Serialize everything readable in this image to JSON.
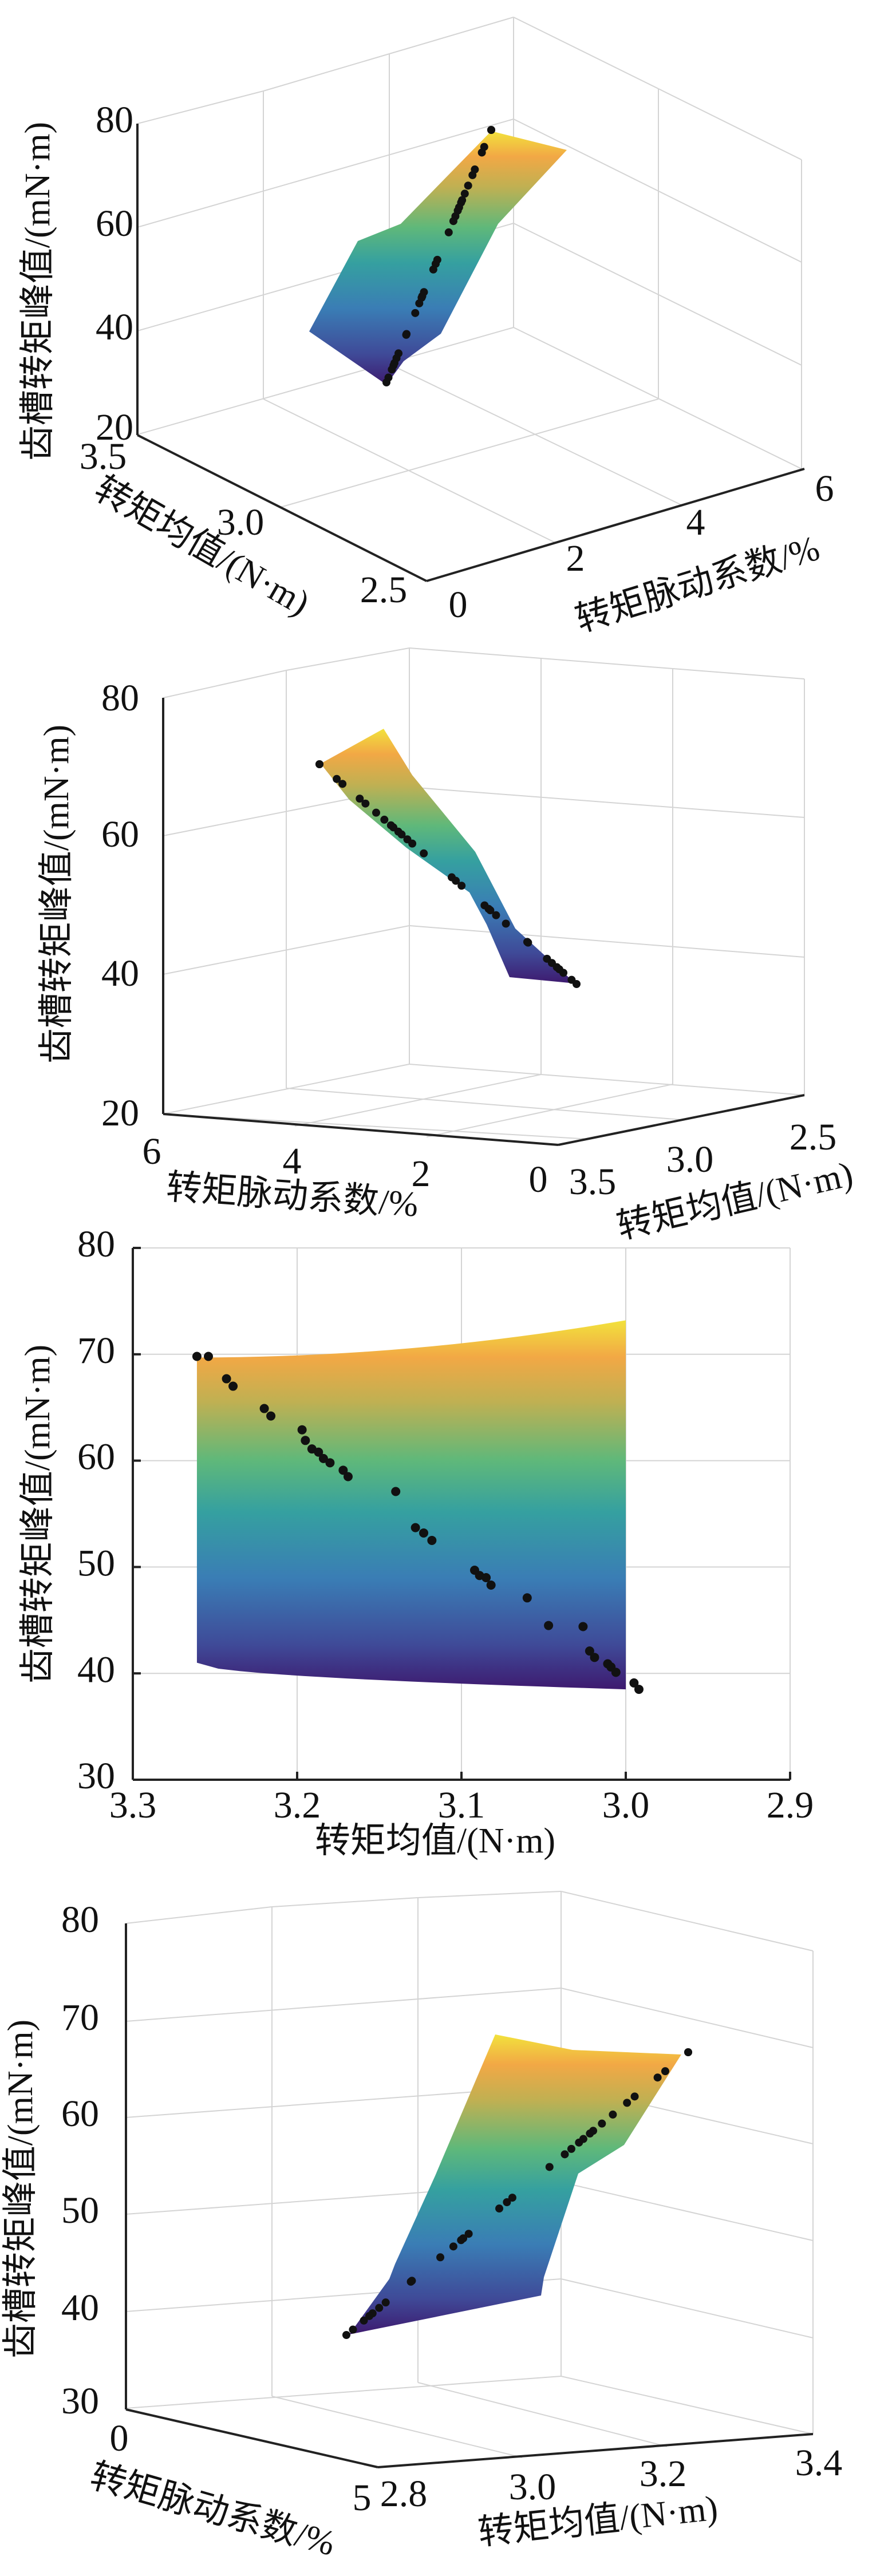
{
  "chart_data": [
    {
      "type": "surface-scatter-3d",
      "view": "3d-front",
      "xlabel": "转矩均值/(N·m)",
      "ylabel": "转矩脉动系数/%",
      "zlabel": "齿槽转矩峰值/(mN·m)",
      "x_ticks": [
        "3.5",
        "3.0",
        "2.5"
      ],
      "y_ticks": [
        "0",
        "2",
        "4",
        "6"
      ],
      "z_ticks": [
        "80",
        "60",
        "40",
        "20"
      ],
      "xlim": [
        2.5,
        3.5
      ],
      "ylim": [
        0,
        6
      ],
      "zlim": [
        20,
        80
      ],
      "colormap": [
        "#3e1a6f",
        "#3a5ca8",
        "#2f8fa6",
        "#3fb38a",
        "#92c060",
        "#f0a742",
        "#f2e23c"
      ]
    },
    {
      "type": "surface-scatter-3d",
      "view": "3d-side",
      "xlabel": "转矩脉动系数/%",
      "ylabel": "转矩均值/(N·m)",
      "zlabel": "齿槽转矩峰值/(mN·m)",
      "x_ticks": [
        "6",
        "4",
        "2",
        "0"
      ],
      "y_ticks": [
        "3.5",
        "3.0",
        "2.5"
      ],
      "z_ticks": [
        "80",
        "60",
        "40",
        "20"
      ],
      "xlim": [
        0,
        6
      ],
      "ylim": [
        2.5,
        3.5
      ],
      "zlim": [
        20,
        80
      ]
    },
    {
      "type": "surface-scatter-2d",
      "view": "x-z projection",
      "xlabel": "转矩均值/(N·m)",
      "ylabel": "齿槽转矩峰值/(mN·m)",
      "x_ticks": [
        "3.3",
        "3.2",
        "3.1",
        "3.0",
        "2.9"
      ],
      "y_ticks": [
        "80",
        "70",
        "60",
        "50",
        "40",
        "30"
      ],
      "xlim": [
        3.3,
        2.9
      ],
      "ylim": [
        30,
        80
      ],
      "grid": true,
      "surface_edges": {
        "top": [
          [
            3.261,
            69.7
          ],
          [
            3.0,
            73.2
          ]
        ],
        "bottom": [
          [
            3.261,
            41.0
          ],
          [
            3.0,
            38.5
          ]
        ]
      },
      "points": [
        [
          3.261,
          69.8
        ],
        [
          3.254,
          69.8
        ],
        [
          3.243,
          67.7
        ],
        [
          3.239,
          67.0
        ],
        [
          3.22,
          64.9
        ],
        [
          3.216,
          64.2
        ],
        [
          3.197,
          62.9
        ],
        [
          3.195,
          61.9
        ],
        [
          3.191,
          61.1
        ],
        [
          3.187,
          60.8
        ],
        [
          3.184,
          60.2
        ],
        [
          3.18,
          59.8
        ],
        [
          3.172,
          59.1
        ],
        [
          3.169,
          58.5
        ],
        [
          3.14,
          57.1
        ],
        [
          3.128,
          53.7
        ],
        [
          3.123,
          53.2
        ],
        [
          3.118,
          52.5
        ],
        [
          3.092,
          49.7
        ],
        [
          3.089,
          49.2
        ],
        [
          3.085,
          49.0
        ],
        [
          3.082,
          48.3
        ],
        [
          3.06,
          47.1
        ],
        [
          3.047,
          44.5
        ],
        [
          3.026,
          44.4
        ],
        [
          3.022,
          42.1
        ],
        [
          3.019,
          41.5
        ],
        [
          3.011,
          40.9
        ],
        [
          3.009,
          40.6
        ],
        [
          3.006,
          40.1
        ],
        [
          2.995,
          39.1
        ],
        [
          2.992,
          38.5
        ]
      ]
    },
    {
      "type": "surface-scatter-3d",
      "view": "3d-rear",
      "xlabel": "转矩均值/(N·m)",
      "ylabel": "转矩脉动系数/%",
      "zlabel": "齿槽转矩峰值/(mN·m)",
      "x_ticks": [
        "2.8",
        "3.0",
        "3.2",
        "3.4"
      ],
      "y_ticks": [
        "0",
        "5"
      ],
      "z_ticks": [
        "80",
        "70",
        "60",
        "50",
        "40",
        "30"
      ],
      "xlim": [
        2.8,
        3.4
      ],
      "ylim": [
        0,
        5
      ],
      "zlim": [
        30,
        80
      ]
    }
  ]
}
